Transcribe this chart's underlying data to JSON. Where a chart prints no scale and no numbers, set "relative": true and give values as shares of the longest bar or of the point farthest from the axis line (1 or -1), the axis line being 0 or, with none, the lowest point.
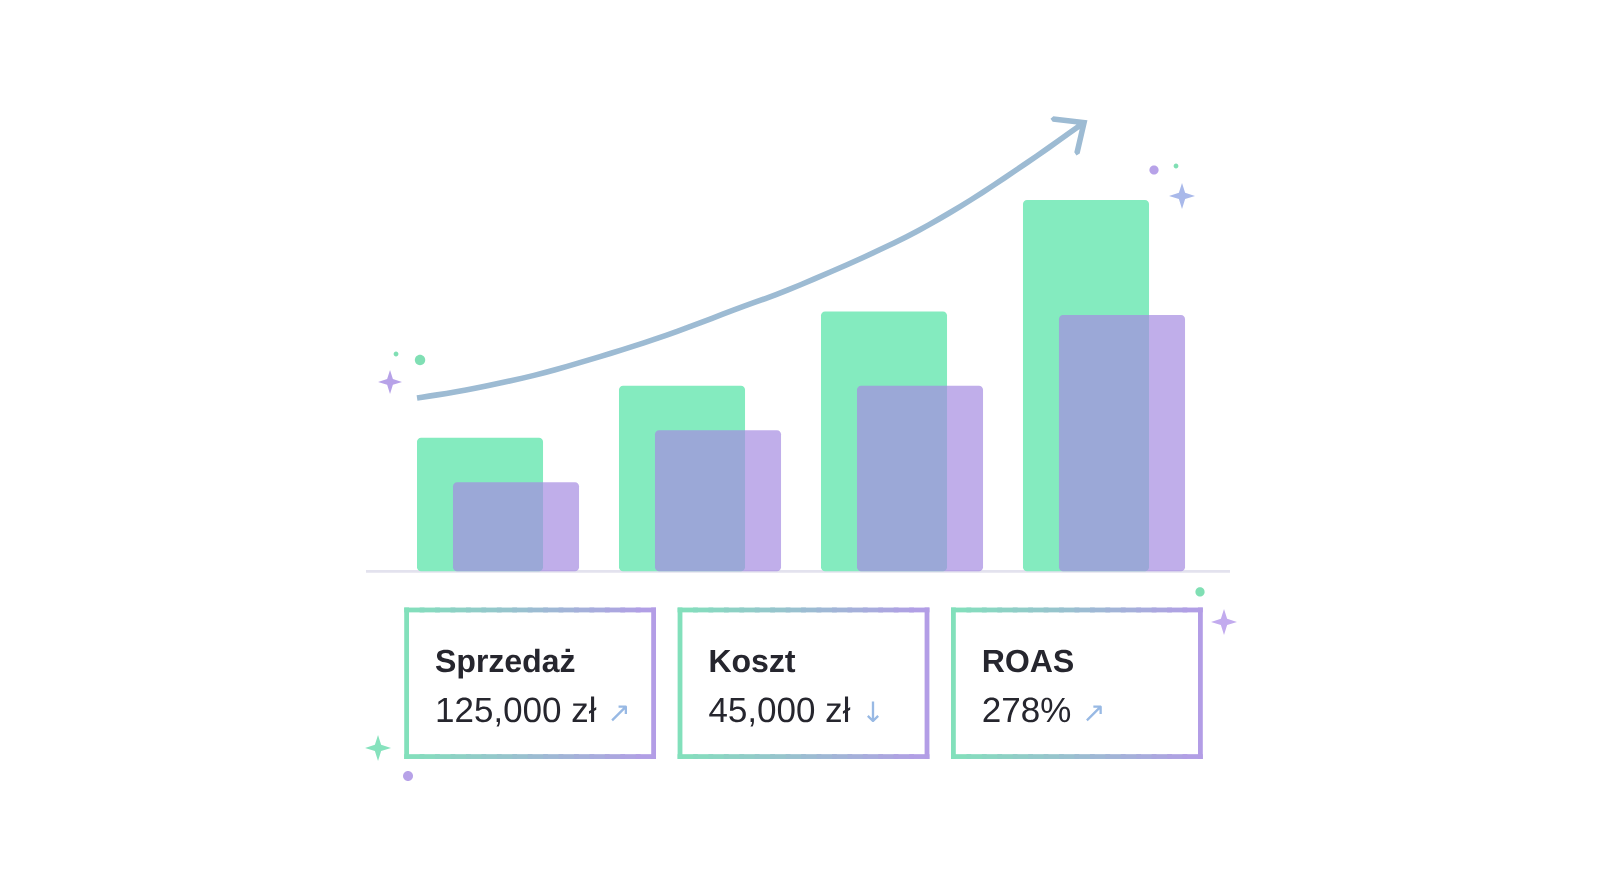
{
  "chart_data": {
    "type": "bar",
    "relative": true,
    "categories": [
      null,
      null,
      null,
      null
    ],
    "series": [
      {
        "color": "#84ebbf",
        "values": [
          0.36,
          0.5,
          0.7,
          1.0
        ]
      },
      {
        "color": "#a58be1",
        "values": [
          0.24,
          0.38,
          0.5,
          0.69
        ]
      }
    ],
    "annotations": [
      "Sprzedaż",
      "125,000 zł",
      "↗",
      "Koszt",
      "45,000 zł",
      "↓",
      "ROAS",
      "278%",
      "↗"
    ]
  }
}
